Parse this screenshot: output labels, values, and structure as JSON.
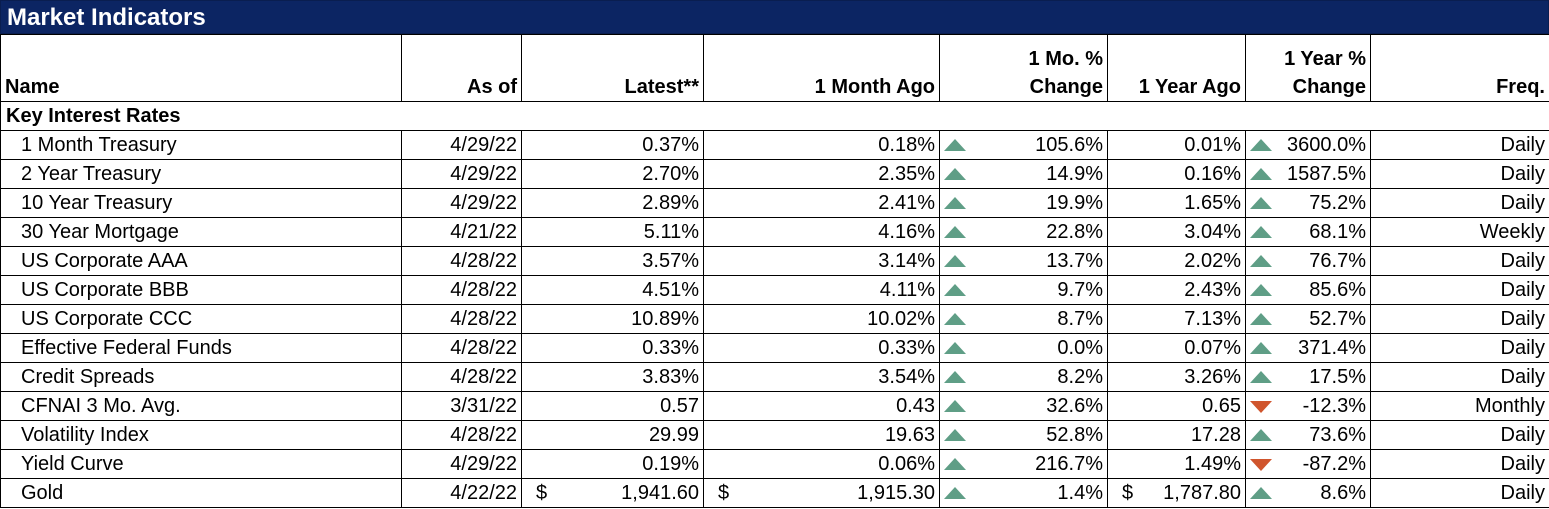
{
  "title": "Market Indicators",
  "columns": {
    "name": "Name",
    "as_of": "As of",
    "latest": "Latest**",
    "month_ago": "1 Month Ago",
    "mo_change_line1": "1 Mo. %",
    "mo_change_line2": "Change",
    "year_ago": "1 Year Ago",
    "yr_change_line1": "1 Year %",
    "yr_change_line2": "Change",
    "freq": "Freq."
  },
  "section": "Key Interest Rates",
  "colors": {
    "title_bg": "#0c2563",
    "up_arrow": "#5f9e86",
    "down_arrow": "#d0552d"
  },
  "rows": [
    {
      "name": "1 Month Treasury",
      "as_of": "4/29/22",
      "latest": "0.37%",
      "month_ago": "0.18%",
      "mo_dir": "up",
      "mo_change": "105.6%",
      "year_ago": "0.01%",
      "yr_dir": "up",
      "yr_change": "3600.0%",
      "freq": "Daily"
    },
    {
      "name": "2 Year Treasury",
      "as_of": "4/29/22",
      "latest": "2.70%",
      "month_ago": "2.35%",
      "mo_dir": "up",
      "mo_change": "14.9%",
      "year_ago": "0.16%",
      "yr_dir": "up",
      "yr_change": "1587.5%",
      "freq": "Daily"
    },
    {
      "name": "10 Year Treasury",
      "as_of": "4/29/22",
      "latest": "2.89%",
      "month_ago": "2.41%",
      "mo_dir": "up",
      "mo_change": "19.9%",
      "year_ago": "1.65%",
      "yr_dir": "up",
      "yr_change": "75.2%",
      "freq": "Daily"
    },
    {
      "name": "30 Year Mortgage",
      "as_of": "4/21/22",
      "latest": "5.11%",
      "month_ago": "4.16%",
      "mo_dir": "up",
      "mo_change": "22.8%",
      "year_ago": "3.04%",
      "yr_dir": "up",
      "yr_change": "68.1%",
      "freq": "Weekly"
    },
    {
      "name": "US Corporate AAA",
      "as_of": "4/28/22",
      "latest": "3.57%",
      "month_ago": "3.14%",
      "mo_dir": "up",
      "mo_change": "13.7%",
      "year_ago": "2.02%",
      "yr_dir": "up",
      "yr_change": "76.7%",
      "freq": "Daily"
    },
    {
      "name": "US Corporate BBB",
      "as_of": "4/28/22",
      "latest": "4.51%",
      "month_ago": "4.11%",
      "mo_dir": "up",
      "mo_change": "9.7%",
      "year_ago": "2.43%",
      "yr_dir": "up",
      "yr_change": "85.6%",
      "freq": "Daily"
    },
    {
      "name": "US Corporate CCC",
      "as_of": "4/28/22",
      "latest": "10.89%",
      "month_ago": "10.02%",
      "mo_dir": "up",
      "mo_change": "8.7%",
      "year_ago": "7.13%",
      "yr_dir": "up",
      "yr_change": "52.7%",
      "freq": "Daily"
    },
    {
      "name": "Effective Federal Funds",
      "as_of": "4/28/22",
      "latest": "0.33%",
      "month_ago": "0.33%",
      "mo_dir": "up",
      "mo_change": "0.0%",
      "year_ago": "0.07%",
      "yr_dir": "up",
      "yr_change": "371.4%",
      "freq": "Daily"
    },
    {
      "name": "Credit Spreads",
      "as_of": "4/28/22",
      "latest": "3.83%",
      "month_ago": "3.54%",
      "mo_dir": "up",
      "mo_change": "8.2%",
      "year_ago": "3.26%",
      "yr_dir": "up",
      "yr_change": "17.5%",
      "freq": "Daily"
    },
    {
      "name": "CFNAI 3 Mo. Avg.",
      "as_of": "3/31/22",
      "latest": "0.57",
      "month_ago": "0.43",
      "mo_dir": "up",
      "mo_change": "32.6%",
      "year_ago": "0.65",
      "yr_dir": "down",
      "yr_change": "-12.3%",
      "freq": "Monthly"
    },
    {
      "name": "Volatility Index",
      "as_of": "4/28/22",
      "latest": "29.99",
      "month_ago": "19.63",
      "mo_dir": "up",
      "mo_change": "52.8%",
      "year_ago": "17.28",
      "yr_dir": "up",
      "yr_change": "73.6%",
      "freq": "Daily"
    },
    {
      "name": "Yield Curve",
      "as_of": "4/29/22",
      "latest": "0.19%",
      "month_ago": "0.06%",
      "mo_dir": "up",
      "mo_change": "216.7%",
      "year_ago": "1.49%",
      "yr_dir": "down",
      "yr_change": "-87.2%",
      "freq": "Daily"
    },
    {
      "name": "Gold",
      "as_of": "4/22/22",
      "latest": "1,941.60",
      "latest_cur": "$",
      "month_ago": "1,915.30",
      "month_ago_cur": "$",
      "mo_dir": "up",
      "mo_change": "1.4%",
      "year_ago": "1,787.80",
      "year_ago_cur": "$",
      "yr_dir": "up",
      "yr_change": "8.6%",
      "freq": "Daily"
    }
  ]
}
